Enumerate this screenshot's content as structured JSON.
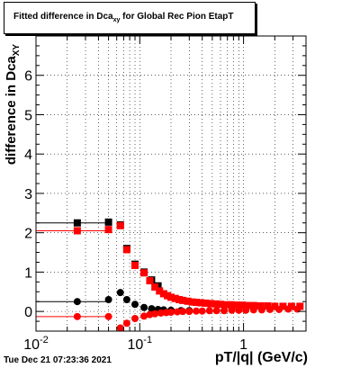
{
  "title": {
    "main": "Fitted difference in Dca",
    "sub": "xy",
    "rest": " for Global Rec Pion EtapT"
  },
  "ylabel": {
    "main": "difference in Dca",
    "sub": "XY"
  },
  "xlabel": "pT/|q| (GeV/c)",
  "timestamp": "Tue Dec 21 07:23:36 2021",
  "chart_data": {
    "type": "scatter",
    "xscale": "log",
    "xlim": [
      0.01,
      4.0
    ],
    "ylim": [
      -0.5,
      7.0
    ],
    "grid": true,
    "x_tick_labels": [
      {
        "value": 0.01,
        "base": "10",
        "exp": "-2"
      },
      {
        "value": 0.1,
        "base": "10",
        "exp": "-1"
      },
      {
        "value": 1,
        "base": "1",
        "exp": ""
      }
    ],
    "y_ticks": [
      0,
      1,
      2,
      3,
      4,
      5,
      6
    ],
    "colors": {
      "black": "#000000",
      "red": "#ff0000",
      "grid": "#000000"
    },
    "series": [
      {
        "color": "black",
        "marker": "square",
        "points": [
          [
            0.025,
            2.25
          ],
          [
            0.05,
            2.27
          ],
          [
            0.065,
            2.2
          ],
          [
            0.075,
            1.6
          ],
          [
            0.09,
            1.2
          ],
          [
            0.11,
            1.0
          ],
          [
            0.13,
            0.8
          ],
          [
            0.15,
            0.65
          ]
        ]
      },
      {
        "color": "red",
        "marker": "square",
        "points": [
          [
            0.025,
            2.05
          ],
          [
            0.05,
            2.08
          ],
          [
            0.065,
            2.18
          ],
          [
            0.075,
            1.57
          ],
          [
            0.09,
            1.17
          ],
          [
            0.11,
            0.98
          ],
          [
            0.125,
            0.78
          ],
          [
            0.14,
            0.62
          ],
          [
            0.155,
            0.52
          ],
          [
            0.17,
            0.45
          ],
          [
            0.185,
            0.4
          ],
          [
            0.2,
            0.36
          ],
          [
            0.22,
            0.33
          ],
          [
            0.24,
            0.3
          ],
          [
            0.26,
            0.28
          ],
          [
            0.29,
            0.26
          ],
          [
            0.32,
            0.24
          ],
          [
            0.35,
            0.23
          ],
          [
            0.39,
            0.22
          ],
          [
            0.43,
            0.21
          ],
          [
            0.48,
            0.2
          ],
          [
            0.54,
            0.19
          ],
          [
            0.6,
            0.18
          ],
          [
            0.68,
            0.17
          ],
          [
            0.76,
            0.17
          ],
          [
            0.86,
            0.16
          ],
          [
            0.97,
            0.16
          ],
          [
            1.1,
            0.15
          ],
          [
            1.25,
            0.15
          ],
          [
            1.45,
            0.14
          ],
          [
            1.7,
            0.14
          ],
          [
            2.0,
            0.13
          ],
          [
            2.4,
            0.13
          ],
          [
            2.9,
            0.13
          ],
          [
            3.5,
            0.13
          ]
        ]
      },
      {
        "color": "black",
        "marker": "circle",
        "points": [
          [
            0.025,
            0.25
          ],
          [
            0.05,
            0.3
          ],
          [
            0.065,
            0.48
          ],
          [
            0.075,
            0.3
          ],
          [
            0.09,
            0.18
          ],
          [
            0.11,
            0.1
          ],
          [
            0.13,
            0.07
          ],
          [
            0.15,
            0.05
          ],
          [
            0.17,
            0.04
          ],
          [
            0.2,
            0.03
          ],
          [
            0.25,
            0.02
          ],
          [
            0.3,
            0.02
          ]
        ]
      },
      {
        "color": "red",
        "marker": "circle",
        "points": [
          [
            0.025,
            -0.13
          ],
          [
            0.05,
            -0.13
          ],
          [
            0.065,
            -0.42
          ],
          [
            0.075,
            -0.3
          ],
          [
            0.09,
            -0.18
          ],
          [
            0.11,
            -0.12
          ],
          [
            0.125,
            -0.08
          ],
          [
            0.14,
            -0.06
          ],
          [
            0.16,
            -0.04
          ],
          [
            0.18,
            -0.03
          ],
          [
            0.2,
            -0.02
          ],
          [
            0.23,
            -0.01
          ],
          [
            0.26,
            0.0
          ],
          [
            0.3,
            0.0
          ],
          [
            0.35,
            0.01
          ],
          [
            0.4,
            0.01
          ],
          [
            0.47,
            0.02
          ],
          [
            0.55,
            0.02
          ],
          [
            0.65,
            0.02
          ],
          [
            0.77,
            0.03
          ],
          [
            0.9,
            0.03
          ],
          [
            1.05,
            0.03
          ],
          [
            1.25,
            0.04
          ],
          [
            1.5,
            0.04
          ],
          [
            1.8,
            0.05
          ],
          [
            2.2,
            0.05
          ],
          [
            2.7,
            0.06
          ],
          [
            3.3,
            0.06
          ]
        ]
      }
    ]
  }
}
